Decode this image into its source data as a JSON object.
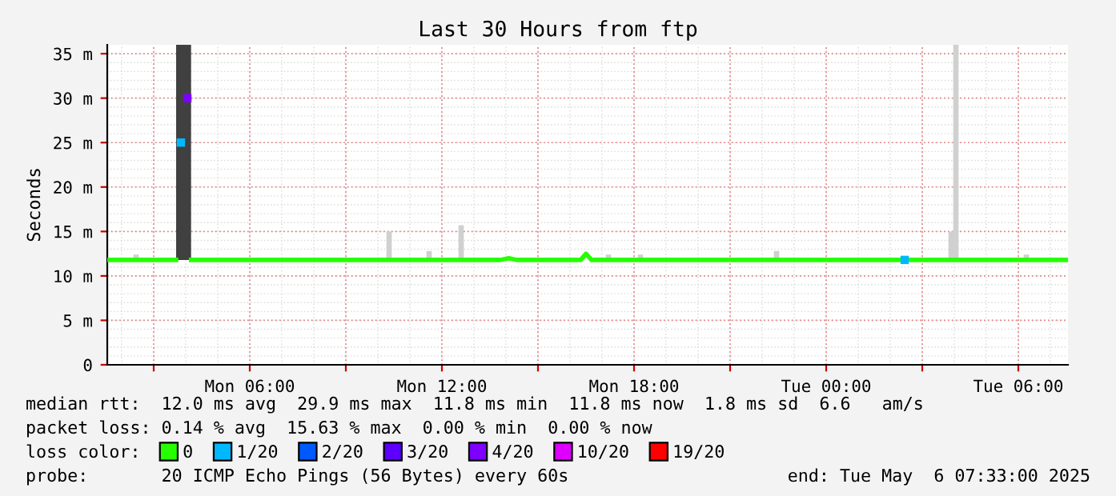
{
  "chart_data": {
    "type": "line",
    "title": "Last 30 Hours from ftp",
    "ylabel": "Seconds",
    "legend_title": "loss color:",
    "legend": "bottom",
    "grid": true,
    "xlim": [
      "2025-05-05T01:33",
      "2025-05-06T07:33"
    ],
    "xticks": [
      {
        "value": "2025-05-05T03:00",
        "label": null
      },
      {
        "value": "2025-05-05T06:00",
        "label": "Mon 06:00"
      },
      {
        "value": "2025-05-05T09:00",
        "label": null
      },
      {
        "value": "2025-05-05T12:00",
        "label": "Mon 12:00"
      },
      {
        "value": "2025-05-05T15:00",
        "label": null
      },
      {
        "value": "2025-05-05T18:00",
        "label": "Mon 18:00"
      },
      {
        "value": "2025-05-05T21:00",
        "label": null
      },
      {
        "value": "2025-05-06T00:00",
        "label": "Tue 00:00"
      },
      {
        "value": "2025-05-06T03:00",
        "label": null
      },
      {
        "value": "2025-05-06T06:00",
        "label": "Tue 06:00"
      }
    ],
    "ylim": [
      0,
      36
    ],
    "yticks": [
      0,
      {
        "value": 5,
        "label": "5 m"
      },
      {
        "value": 10,
        "label": "10 m"
      },
      {
        "value": 15,
        "label": "15 m"
      },
      {
        "value": 20,
        "label": "20 m"
      },
      {
        "value": 25,
        "label": "25 m"
      },
      {
        "value": 30,
        "label": "30 m"
      },
      {
        "value": 35,
        "label": "35 m"
      }
    ],
    "series": [
      {
        "type": "bar",
        "color": "#d0d0d0",
        "x": [
          "2025-05-05T02:27",
          "2025-05-05T10:21",
          "2025-05-05T11:36",
          "2025-05-05T12:36",
          "2025-05-05T17:12",
          "2025-05-05T18:12",
          "2025-05-05T22:27",
          "2025-05-06T03:54",
          "2025-05-06T04:03",
          "2025-05-06T06:15"
        ],
        "base": [
          11.8,
          11.8,
          11.8,
          11.8,
          11.8,
          11.8,
          11.8,
          11.8,
          11.8,
          11.8
        ],
        "values": [
          0.6,
          3.2,
          1.0,
          3.9,
          0.6,
          0.6,
          1.0,
          3.2,
          24.2,
          0.6
        ]
      },
      {
        "type": "bar",
        "color": "#404040",
        "x": [
          "2025-05-05T03:47",
          "2025-05-05T03:56",
          "2025-05-05T04:05"
        ],
        "base": [
          11.8,
          11.8,
          11.8
        ],
        "values": [
          24.2,
          24.2,
          24.2
        ]
      },
      {
        "name": "0",
        "color": "#26ff00",
        "x": [
          "2025-05-05T01:33",
          "2025-05-05T03:42",
          "2025-05-05T03:45",
          "2025-05-05T04:10",
          "2025-05-05T13:50",
          "2025-05-05T14:05",
          "2025-05-05T14:20",
          "2025-05-05T16:20",
          "2025-05-05T16:30",
          "2025-05-05T16:40",
          "2025-05-06T07:33"
        ],
        "values": [
          11.8,
          11.8,
          null,
          11.8,
          11.8,
          12.0,
          11.8,
          11.8,
          12.5,
          11.8,
          11.8
        ]
      },
      {
        "name": "1/20",
        "type": "scatter",
        "marker": "square",
        "color": "#00b8ff",
        "x": [
          "2025-05-05T03:51",
          "2025-05-06T02:27"
        ],
        "values": [
          25,
          11.8
        ]
      },
      {
        "name": "2/20",
        "type": "scatter",
        "color": "#0059ff"
      },
      {
        "name": "3/20",
        "type": "scatter",
        "color": "#5e00ff"
      },
      {
        "name": "4/20",
        "type": "scatter",
        "marker": "square",
        "color": "#7e00ff",
        "x": [
          "2025-05-05T04:03"
        ],
        "values": [
          30
        ]
      },
      {
        "name": "10/20",
        "type": "scatter",
        "color": "#dd00ff"
      },
      {
        "name": "19/20",
        "type": "scatter",
        "color": "#ff0000"
      }
    ],
    "annotations": [
      "median rtt:  12.0 ms avg  29.9 ms max  11.8 ms min  11.8 ms now  1.8 ms sd  6.6   am/s",
      "packet loss: 0.14 % avg  15.63 % max  0.00 % min  0.00 % now",
      "probe:       20 ICMP Echo Pings (56 Bytes) every 60s",
      "end: Tue May  6 07:33:00 2025"
    ]
  }
}
